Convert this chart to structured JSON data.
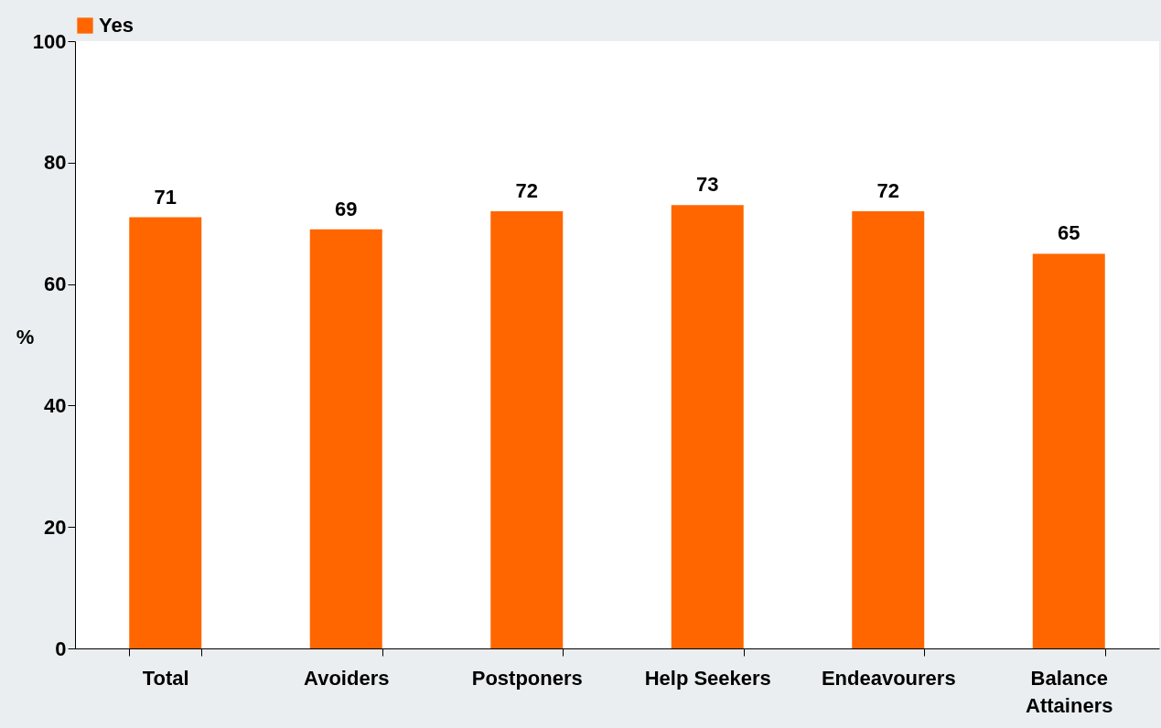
{
  "chart_data": {
    "type": "bar",
    "ylabel": "%",
    "categories": [
      "Total",
      "Avoiders",
      "Postponers",
      "Help Seekers",
      "Endeavourers",
      "Balance Attainers"
    ],
    "series": [
      {
        "name": "Yes",
        "color": "#ff6600",
        "values": [
          71,
          69,
          72,
          73,
          72,
          65
        ]
      }
    ],
    "ylim": [
      0,
      100
    ],
    "yticks": [
      0,
      20,
      40,
      60,
      80,
      100
    ],
    "data_labels": true,
    "legend": "top",
    "grid": false
  }
}
